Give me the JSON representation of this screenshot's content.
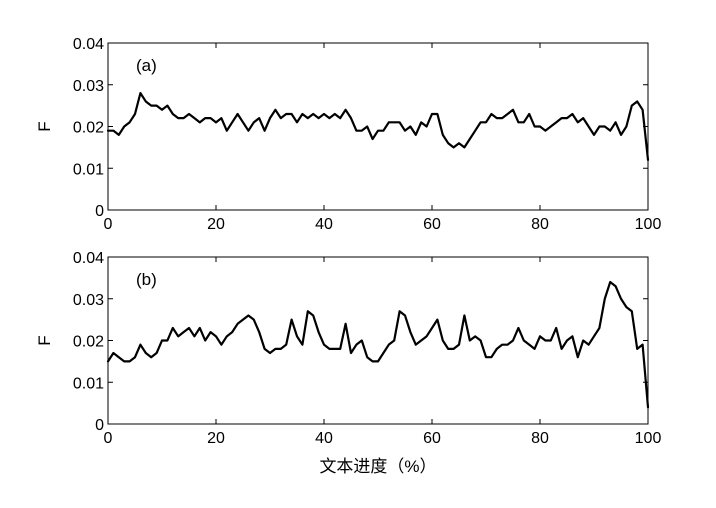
{
  "chart_data": [
    {
      "type": "line",
      "panel_label": "(a)",
      "xlabel": "",
      "ylabel": "F",
      "xlim": [
        0,
        100
      ],
      "ylim": [
        0,
        0.04
      ],
      "xticks": [
        "0",
        "20",
        "40",
        "60",
        "80",
        "100"
      ],
      "yticks": [
        "0",
        "0.01",
        "0.02",
        "0.03",
        "0.04"
      ],
      "grid": false,
      "series": [
        {
          "x": [
            0,
            1,
            2,
            3,
            4,
            5,
            6,
            7,
            8,
            9,
            10,
            11,
            12,
            13,
            14,
            15,
            16,
            17,
            18,
            19,
            20,
            21,
            22,
            23,
            24,
            25,
            26,
            27,
            28,
            29,
            30,
            31,
            32,
            33,
            34,
            35,
            36,
            37,
            38,
            39,
            40,
            41,
            42,
            43,
            44,
            45,
            46,
            47,
            48,
            49,
            50,
            51,
            52,
            53,
            54,
            55,
            56,
            57,
            58,
            59,
            60,
            61,
            62,
            63,
            64,
            65,
            66,
            67,
            68,
            69,
            70,
            71,
            72,
            73,
            74,
            75,
            76,
            77,
            78,
            79,
            80,
            81,
            82,
            83,
            84,
            85,
            86,
            87,
            88,
            89,
            90,
            91,
            92,
            93,
            94,
            95,
            96,
            97,
            98,
            99,
            100
          ],
          "y": [
            0.019,
            0.019,
            0.018,
            0.02,
            0.021,
            0.023,
            0.028,
            0.026,
            0.025,
            0.025,
            0.024,
            0.025,
            0.023,
            0.022,
            0.022,
            0.023,
            0.022,
            0.021,
            0.022,
            0.022,
            0.021,
            0.022,
            0.019,
            0.021,
            0.023,
            0.021,
            0.019,
            0.021,
            0.022,
            0.019,
            0.022,
            0.024,
            0.022,
            0.023,
            0.023,
            0.021,
            0.023,
            0.022,
            0.023,
            0.022,
            0.023,
            0.022,
            0.023,
            0.022,
            0.024,
            0.022,
            0.019,
            0.019,
            0.02,
            0.017,
            0.019,
            0.019,
            0.021,
            0.021,
            0.021,
            0.019,
            0.02,
            0.018,
            0.021,
            0.02,
            0.023,
            0.023,
            0.018,
            0.016,
            0.015,
            0.016,
            0.015,
            0.017,
            0.019,
            0.021,
            0.021,
            0.023,
            0.022,
            0.022,
            0.023,
            0.024,
            0.021,
            0.021,
            0.023,
            0.02,
            0.02,
            0.019,
            0.02,
            0.021,
            0.022,
            0.022,
            0.023,
            0.021,
            0.022,
            0.02,
            0.018,
            0.02,
            0.02,
            0.019,
            0.021,
            0.018,
            0.02,
            0.025,
            0.026,
            0.024,
            0.012
          ]
        }
      ]
    },
    {
      "type": "line",
      "panel_label": "(b)",
      "xlabel": "文本进度（%）",
      "ylabel": "F",
      "xlim": [
        0,
        100
      ],
      "ylim": [
        0,
        0.04
      ],
      "xticks": [
        "0",
        "20",
        "40",
        "60",
        "80",
        "100"
      ],
      "yticks": [
        "0",
        "0.01",
        "0.02",
        "0.03",
        "0.04"
      ],
      "grid": false,
      "series": [
        {
          "x": [
            0,
            1,
            2,
            3,
            4,
            5,
            6,
            7,
            8,
            9,
            10,
            11,
            12,
            13,
            14,
            15,
            16,
            17,
            18,
            19,
            20,
            21,
            22,
            23,
            24,
            25,
            26,
            27,
            28,
            29,
            30,
            31,
            32,
            33,
            34,
            35,
            36,
            37,
            38,
            39,
            40,
            41,
            42,
            43,
            44,
            45,
            46,
            47,
            48,
            49,
            50,
            51,
            52,
            53,
            54,
            55,
            56,
            57,
            58,
            59,
            60,
            61,
            62,
            63,
            64,
            65,
            66,
            67,
            68,
            69,
            70,
            71,
            72,
            73,
            74,
            75,
            76,
            77,
            78,
            79,
            80,
            81,
            82,
            83,
            84,
            85,
            86,
            87,
            88,
            89,
            90,
            91,
            92,
            93,
            94,
            95,
            96,
            97,
            98,
            99,
            100
          ],
          "y": [
            0.015,
            0.017,
            0.016,
            0.015,
            0.015,
            0.016,
            0.019,
            0.017,
            0.016,
            0.017,
            0.02,
            0.02,
            0.023,
            0.021,
            0.022,
            0.023,
            0.021,
            0.023,
            0.02,
            0.022,
            0.021,
            0.019,
            0.021,
            0.022,
            0.024,
            0.025,
            0.026,
            0.025,
            0.022,
            0.018,
            0.017,
            0.018,
            0.018,
            0.019,
            0.025,
            0.021,
            0.019,
            0.027,
            0.026,
            0.022,
            0.019,
            0.018,
            0.018,
            0.018,
            0.024,
            0.017,
            0.019,
            0.02,
            0.016,
            0.015,
            0.015,
            0.017,
            0.019,
            0.02,
            0.027,
            0.026,
            0.022,
            0.019,
            0.02,
            0.021,
            0.023,
            0.025,
            0.02,
            0.018,
            0.018,
            0.019,
            0.026,
            0.02,
            0.021,
            0.02,
            0.016,
            0.016,
            0.018,
            0.019,
            0.019,
            0.02,
            0.023,
            0.02,
            0.019,
            0.018,
            0.021,
            0.02,
            0.02,
            0.023,
            0.018,
            0.02,
            0.021,
            0.016,
            0.02,
            0.019,
            0.021,
            0.023,
            0.03,
            0.034,
            0.033,
            0.03,
            0.028,
            0.027,
            0.018,
            0.019,
            0.004
          ]
        }
      ]
    }
  ]
}
